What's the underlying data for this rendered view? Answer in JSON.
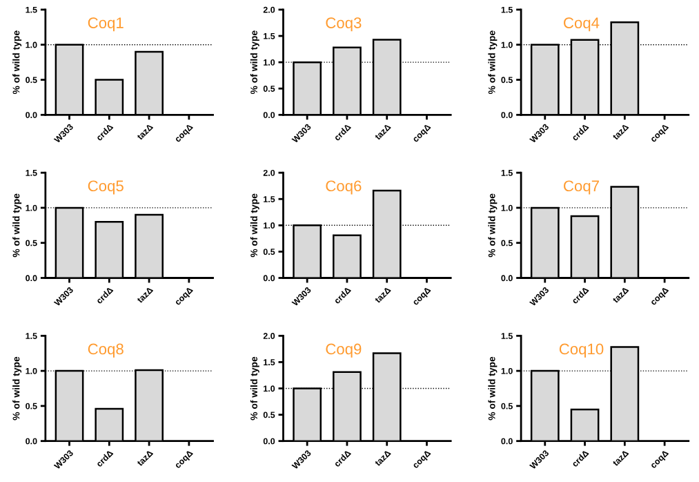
{
  "chart_data": [
    {
      "type": "bar",
      "title": "Coq1",
      "ylabel": "% of wild type",
      "categories": [
        "W303",
        "crdΔ",
        "tazΔ",
        "coqΔ"
      ],
      "values": [
        1.0,
        0.5,
        0.9,
        0
      ],
      "color": "#d9d9d9",
      "ylim": [
        0,
        1.5
      ],
      "yticks": [
        {
          "value": 0,
          "label": "0.0"
        },
        {
          "value": 0.5,
          "label": "0.5"
        },
        {
          "value": 1,
          "label": "1.0"
        },
        {
          "value": 1.5,
          "label": "1.5"
        }
      ],
      "ref_lines": [
        {
          "axis": "y",
          "value": 1,
          "line_style": "dotted",
          "color": "#000000"
        }
      ],
      "grid": false
    },
    {
      "type": "bar",
      "title": "Coq3",
      "ylabel": "% of wild type",
      "categories": [
        "W303",
        "crdΔ",
        "tazΔ",
        "coqΔ"
      ],
      "values": [
        1.0,
        1.28,
        1.43,
        0
      ],
      "color": "#d9d9d9",
      "ylim": [
        0,
        2
      ],
      "yticks": [
        {
          "value": 0,
          "label": "0.0"
        },
        {
          "value": 0.5,
          "label": "0.5"
        },
        {
          "value": 1,
          "label": "1.0"
        },
        {
          "value": 1.5,
          "label": "1.5"
        },
        {
          "value": 2,
          "label": "2.0"
        }
      ],
      "ref_lines": [
        {
          "axis": "y",
          "value": 1,
          "line_style": "dotted",
          "color": "#000000"
        }
      ],
      "grid": false
    },
    {
      "type": "bar",
      "title": "Coq4",
      "ylabel": "% of wild type",
      "categories": [
        "W303",
        "crdΔ",
        "tazΔ",
        "coqΔ"
      ],
      "values": [
        1.0,
        1.07,
        1.32,
        0
      ],
      "color": "#d9d9d9",
      "ylim": [
        0,
        1.5
      ],
      "yticks": [
        {
          "value": 0,
          "label": "0.0"
        },
        {
          "value": 0.5,
          "label": "0.5"
        },
        {
          "value": 1,
          "label": "1.0"
        },
        {
          "value": 1.5,
          "label": "1.5"
        }
      ],
      "ref_lines": [
        {
          "axis": "y",
          "value": 1,
          "line_style": "dotted",
          "color": "#000000"
        }
      ],
      "grid": false
    },
    {
      "type": "bar",
      "title": "Coq5",
      "ylabel": "% of wild type",
      "categories": [
        "W303",
        "crdΔ",
        "tazΔ",
        "coqΔ"
      ],
      "values": [
        1.0,
        0.8,
        0.9,
        0
      ],
      "color": "#d9d9d9",
      "ylim": [
        0,
        1.5
      ],
      "yticks": [
        {
          "value": 0,
          "label": "0.0"
        },
        {
          "value": 0.5,
          "label": "0.5"
        },
        {
          "value": 1,
          "label": "1.0"
        },
        {
          "value": 1.5,
          "label": "1.5"
        }
      ],
      "ref_lines": [
        {
          "axis": "y",
          "value": 1,
          "line_style": "dotted",
          "color": "#000000"
        }
      ],
      "grid": false
    },
    {
      "type": "bar",
      "title": "Coq6",
      "ylabel": "% of wild type",
      "categories": [
        "W303",
        "crdΔ",
        "tazΔ",
        "coqΔ"
      ],
      "values": [
        1.0,
        0.81,
        1.66,
        0
      ],
      "color": "#d9d9d9",
      "ylim": [
        0,
        2
      ],
      "yticks": [
        {
          "value": 0,
          "label": "0.0"
        },
        {
          "value": 0.5,
          "label": "0.5"
        },
        {
          "value": 1,
          "label": "1.0"
        },
        {
          "value": 1.5,
          "label": "1.5"
        },
        {
          "value": 2,
          "label": "2.0"
        }
      ],
      "ref_lines": [
        {
          "axis": "y",
          "value": 1,
          "line_style": "dotted",
          "color": "#000000"
        }
      ],
      "grid": false
    },
    {
      "type": "bar",
      "title": "Coq7",
      "ylabel": "% of wild type",
      "categories": [
        "W303",
        "crdΔ",
        "tazΔ",
        "coqΔ"
      ],
      "values": [
        1.0,
        0.88,
        1.3,
        0
      ],
      "color": "#d9d9d9",
      "ylim": [
        0,
        1.5
      ],
      "yticks": [
        {
          "value": 0,
          "label": "0.0"
        },
        {
          "value": 0.5,
          "label": "0.5"
        },
        {
          "value": 1,
          "label": "1.0"
        },
        {
          "value": 1.5,
          "label": "1.5"
        }
      ],
      "ref_lines": [
        {
          "axis": "y",
          "value": 1,
          "line_style": "dotted",
          "color": "#000000"
        }
      ],
      "grid": false
    },
    {
      "type": "bar",
      "title": "Coq8",
      "ylabel": "% of wild type",
      "categories": [
        "W303",
        "crdΔ",
        "tazΔ",
        "coqΔ"
      ],
      "values": [
        1.0,
        0.46,
        1.01,
        0
      ],
      "color": "#d9d9d9",
      "ylim": [
        0,
        1.5
      ],
      "yticks": [
        {
          "value": 0,
          "label": "0.0"
        },
        {
          "value": 0.5,
          "label": "0.5"
        },
        {
          "value": 1,
          "label": "1.0"
        },
        {
          "value": 1.5,
          "label": "1.5"
        }
      ],
      "ref_lines": [
        {
          "axis": "y",
          "value": 1,
          "line_style": "dotted",
          "color": "#000000"
        }
      ],
      "grid": false
    },
    {
      "type": "bar",
      "title": "Coq9",
      "ylabel": "% of wild type",
      "categories": [
        "W303",
        "crdΔ",
        "tazΔ",
        "coqΔ"
      ],
      "values": [
        1.0,
        1.31,
        1.67,
        0
      ],
      "color": "#d9d9d9",
      "ylim": [
        0,
        2
      ],
      "yticks": [
        {
          "value": 0,
          "label": "0.0"
        },
        {
          "value": 0.5,
          "label": "0.5"
        },
        {
          "value": 1,
          "label": "1.0"
        },
        {
          "value": 1.5,
          "label": "1.5"
        },
        {
          "value": 2,
          "label": "2.0"
        }
      ],
      "ref_lines": [
        {
          "axis": "y",
          "value": 1,
          "line_style": "dotted",
          "color": "#000000"
        }
      ],
      "grid": false
    },
    {
      "type": "bar",
      "title": "Coq10",
      "ylabel": "% of wild type",
      "categories": [
        "W303",
        "crdΔ",
        "tazΔ",
        "coqΔ"
      ],
      "values": [
        1.0,
        0.45,
        1.34,
        0
      ],
      "color": "#d9d9d9",
      "ylim": [
        0,
        1.5
      ],
      "yticks": [
        {
          "value": 0,
          "label": "0.0"
        },
        {
          "value": 0.5,
          "label": "0.5"
        },
        {
          "value": 1,
          "label": "1.0"
        },
        {
          "value": 1.5,
          "label": "1.5"
        }
      ],
      "ref_lines": [
        {
          "axis": "y",
          "value": 1,
          "line_style": "dotted",
          "color": "#000000"
        }
      ],
      "grid": false
    }
  ]
}
